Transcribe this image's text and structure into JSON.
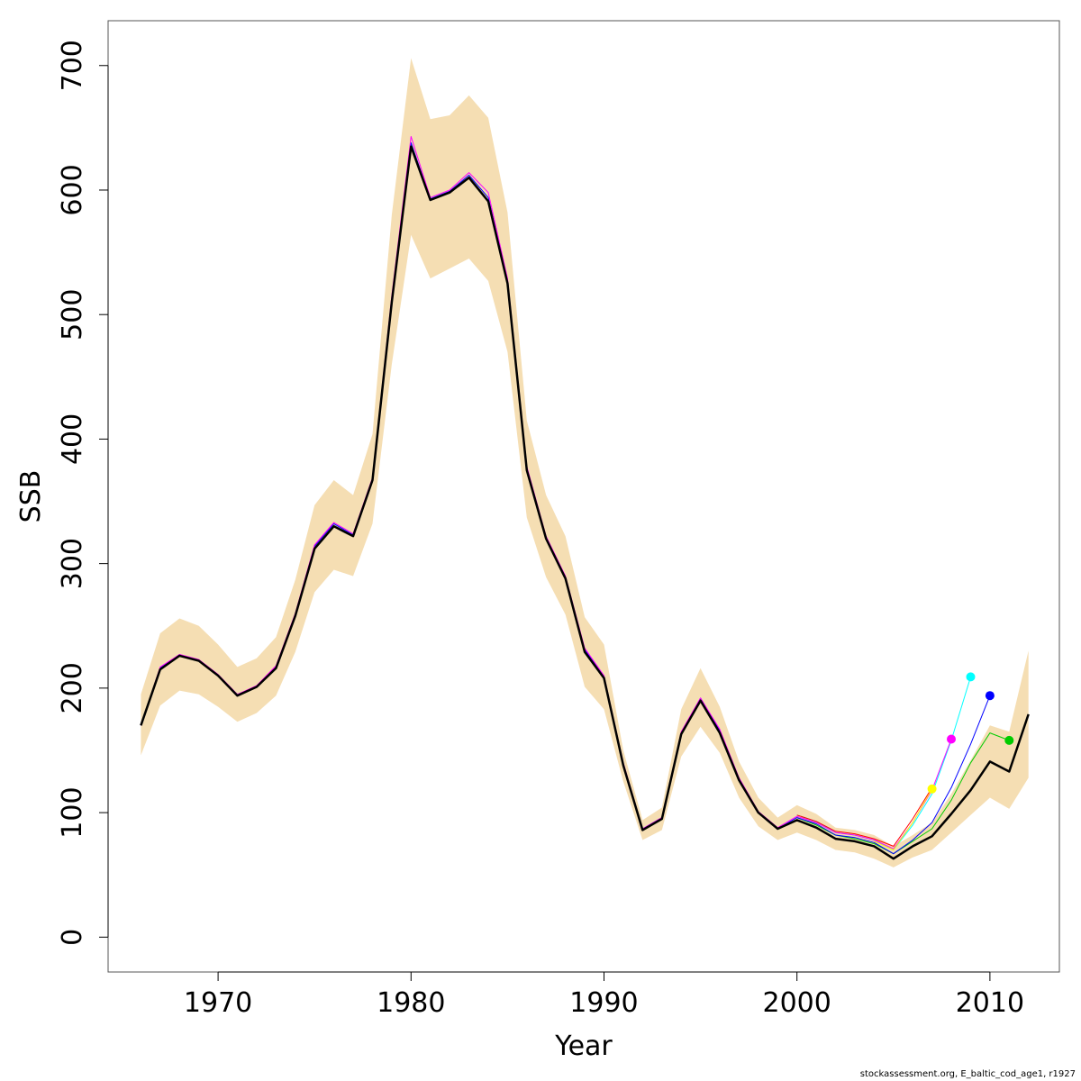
{
  "chart_data": {
    "type": "line",
    "xlabel": "Year",
    "ylabel": "SSB",
    "xlim": [
      1964.3,
      2013.6
    ],
    "ylim": [
      -28,
      736
    ],
    "x_ticks": [
      1970,
      1980,
      1990,
      2000,
      2010
    ],
    "y_ticks": [
      0,
      100,
      200,
      300,
      400,
      500,
      600,
      700
    ],
    "grid": false,
    "credit": "stockassessment.org, E_baltic_cod_age1, r1927",
    "band_color": "#F5DEB3",
    "band": {
      "years": [
        1966,
        1967,
        1968,
        1969,
        1970,
        1971,
        1972,
        1973,
        1974,
        1975,
        1976,
        1977,
        1978,
        1979,
        1980,
        1981,
        1982,
        1983,
        1984,
        1985,
        1986,
        1987,
        1988,
        1989,
        1990,
        1991,
        1992,
        1993,
        1994,
        1995,
        1996,
        1997,
        1998,
        1999,
        2000,
        2001,
        2002,
        2003,
        2004,
        2005,
        2006,
        2007,
        2008,
        2009,
        2010,
        2011,
        2012
      ],
      "upper": [
        195,
        244,
        256,
        250,
        235,
        217,
        224,
        241,
        287,
        347,
        367,
        355,
        404,
        580,
        706,
        657,
        660,
        676,
        658,
        582,
        415,
        355,
        322,
        257,
        235,
        150,
        94,
        104,
        183,
        216,
        185,
        141,
        112,
        96,
        106,
        99,
        88,
        86,
        82,
        73,
        82,
        92,
        115,
        142,
        170,
        165,
        230
      ],
      "lower": [
        146,
        186,
        198,
        195,
        185,
        173,
        180,
        194,
        229,
        277,
        295,
        290,
        332,
        460,
        564,
        529,
        537,
        545,
        527,
        470,
        337,
        289,
        259,
        201,
        183,
        125,
        78,
        86,
        145,
        169,
        148,
        112,
        89,
        78,
        84,
        78,
        70,
        68,
        63,
        56,
        64,
        70,
        84,
        98,
        112,
        103,
        128
      ]
    },
    "series": [
      {
        "color": "#000000",
        "width": 2.5,
        "x": [
          1966,
          1967,
          1968,
          1969,
          1970,
          1971,
          1972,
          1973,
          1974,
          1975,
          1976,
          1977,
          1978,
          1979,
          1980,
          1981,
          1982,
          1983,
          1984,
          1985,
          1986,
          1987,
          1988,
          1989,
          1990,
          1991,
          1992,
          1993,
          1994,
          1995,
          1996,
          1997,
          1998,
          1999,
          2000,
          2001,
          2002,
          2003,
          2004,
          2005,
          2006,
          2007,
          2008,
          2009,
          2010,
          2011,
          2012
        ],
        "values": [
          170,
          215,
          226,
          222,
          210,
          194,
          201,
          216,
          258,
          312,
          330,
          322,
          367,
          510,
          635,
          592,
          598,
          610,
          591,
          525,
          375,
          320,
          288,
          229,
          208,
          138,
          86,
          95,
          163,
          190,
          164,
          126,
          100,
          87,
          94,
          88,
          79,
          77,
          73,
          63,
          73,
          81,
          99,
          118,
          141,
          133,
          179
        ]
      },
      {
        "color": "#00CC00",
        "width": 1,
        "x": [
          2000,
          2001,
          2002,
          2003,
          2004,
          2005,
          2006,
          2007,
          2008,
          2009,
          2010,
          2011
        ],
        "values": [
          96,
          90,
          82,
          79,
          75,
          67,
          77,
          87,
          110,
          140,
          164,
          158
        ],
        "end_marker": true
      },
      {
        "color": "#0000FF",
        "width": 1,
        "x": [
          1966,
          1967,
          1968,
          1969,
          1970,
          1971,
          1972,
          1973,
          1974,
          1975,
          1976,
          1977,
          1978,
          1979,
          1980,
          1981,
          1982,
          1983,
          1984,
          1985,
          1986,
          1987,
          1988,
          1989,
          1990,
          1991,
          1992,
          1993,
          1994,
          1995,
          1996,
          1997,
          1998,
          1999,
          2000,
          2001,
          2002,
          2003,
          2004,
          2005,
          2006,
          2007,
          2008,
          2009,
          2010
        ],
        "values": [
          170,
          216,
          227,
          222,
          210,
          195,
          201,
          217,
          259,
          314,
          332,
          323,
          368,
          512,
          638,
          593,
          599,
          612,
          594,
          527,
          377,
          321,
          289,
          231,
          209,
          139,
          87,
          96,
          164,
          192,
          166,
          127,
          100,
          87,
          96,
          91,
          82,
          80,
          76,
          67,
          78,
          92,
          120,
          155,
          194
        ],
        "end_marker": true
      },
      {
        "color": "#00FFFF",
        "width": 1,
        "x": [
          2000,
          2001,
          2002,
          2003,
          2004,
          2005,
          2006,
          2007,
          2008,
          2009
        ],
        "values": [
          98,
          93,
          84,
          82,
          78,
          70,
          90,
          115,
          158,
          209
        ],
        "end_marker": true
      },
      {
        "color": "#FF00FF",
        "width": 1,
        "x": [
          1966,
          1967,
          1968,
          1969,
          1970,
          1971,
          1972,
          1973,
          1974,
          1975,
          1976,
          1977,
          1978,
          1979,
          1980,
          1981,
          1982,
          1983,
          1984,
          1985,
          1986,
          1987,
          1988,
          1989,
          1990,
          1991,
          1992,
          1993,
          1994,
          1995,
          1996,
          1997,
          1998,
          1999,
          2000,
          2001,
          2002,
          2003,
          2004,
          2005,
          2006,
          2007,
          2008
        ],
        "values": [
          170,
          217,
          227,
          223,
          211,
          195,
          202,
          218,
          260,
          315,
          333,
          324,
          369,
          515,
          643,
          594,
          600,
          614,
          598,
          529,
          378,
          322,
          290,
          232,
          210,
          140,
          87,
          96,
          165,
          192,
          167,
          128,
          101,
          88,
          97,
          92,
          84,
          82,
          78,
          71,
          92,
          118,
          159
        ],
        "end_marker": true
      },
      {
        "color": "#FF0000",
        "width": 1,
        "x": [
          2000,
          2001,
          2002,
          2003,
          2004,
          2005,
          2006,
          2007
        ],
        "values": [
          98,
          93,
          85,
          83,
          79,
          73,
          95,
          120
        ],
        "end_marker": false
      },
      {
        "color": "#FFFF00",
        "width": 1,
        "x": [
          2004,
          2005,
          2006,
          2007
        ],
        "values": [
          77,
          70,
          92,
          119
        ],
        "end_marker": true
      }
    ]
  }
}
